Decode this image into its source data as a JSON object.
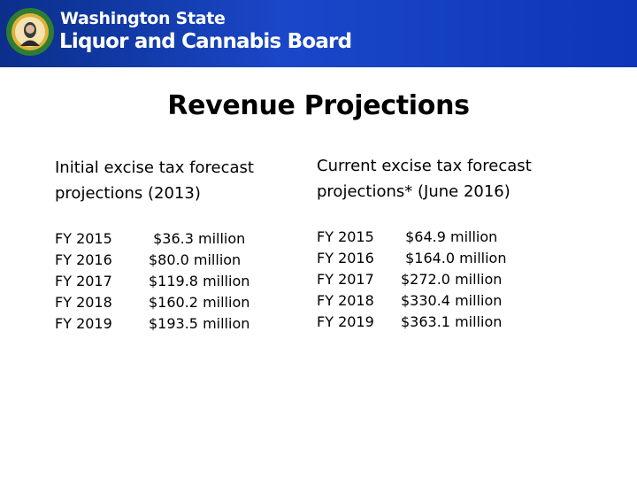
{
  "header": {
    "org_line1": "Washington State",
    "org_line2": "Liquor and Cannabis Board",
    "seal_icon": "state-seal-icon"
  },
  "slide": {
    "title": "Revenue Projections",
    "left": {
      "heading_line1": "Initial excise tax forecast",
      "heading_line2": "projections (2013)",
      "rows": [
        {
          "year": "FY 2015",
          "value": " $36.3 million"
        },
        {
          "year": "FY 2016",
          "value": "$80.0 million"
        },
        {
          "year": "FY 2017",
          "value": "$119.8 million"
        },
        {
          "year": "FY 2018",
          "value": "$160.2 million"
        },
        {
          "year": "FY 2019",
          "value": "$193.5 million"
        }
      ]
    },
    "right": {
      "heading_line1": "Current excise tax forecast",
      "heading_line2": "projections* (June 2016)",
      "rows": [
        {
          "year": "FY 2015",
          "value": " $64.9 million"
        },
        {
          "year": "FY 2016",
          "value": " $164.0 million"
        },
        {
          "year": "FY 2017",
          "value": "$272.0 million"
        },
        {
          "year": "FY 2018",
          "value": "$330.4 million"
        },
        {
          "year": "FY 2019",
          "value": "$363.1 million"
        }
      ]
    }
  },
  "colors": {
    "banner": "#1a47c9",
    "seal_green": "#2e7d32",
    "seal_gold": "#e0b23a"
  }
}
